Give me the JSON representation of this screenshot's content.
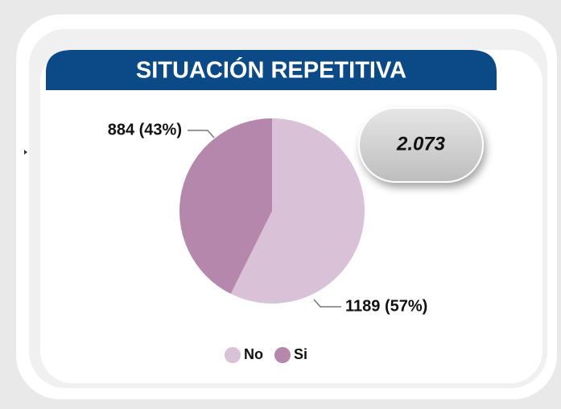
{
  "chart_data": {
    "type": "pie",
    "title": "SITUACIÓN REPETITIVA",
    "categories": [
      "No",
      "Si"
    ],
    "values": [
      1189,
      884
    ],
    "value_labels": [
      "1189 (57%)",
      "884 (43%)"
    ],
    "colors": [
      "#d9c1d7",
      "#b587ac"
    ],
    "total": {
      "value": 2073,
      "label": "2.073"
    },
    "legend": "bottom"
  }
}
